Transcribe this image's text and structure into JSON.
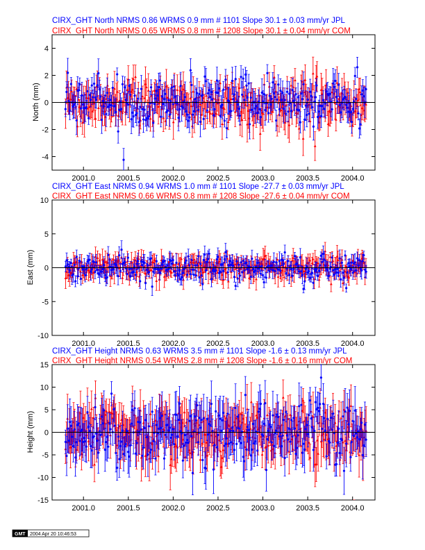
{
  "chart_data": [
    {
      "type": "scatter",
      "title": "",
      "header_lines": [
        "CIRX_GHT North NRMS 0.86 WRMS  0.9 mm # 1101 Slope   30.1 ±  0.03 mm/yr JPL",
        "CIRX_GHT North NRMS 0.65 WRMS  0.8 mm # 1208 Slope   30.1 ±  0.04 mm/yr COM"
      ],
      "xlabel": "",
      "ylabel": "North (mm)",
      "xlim": [
        2000.65,
        2004.25
      ],
      "ylim": [
        -5,
        5
      ],
      "xticks": [
        2001.0,
        2001.5,
        2002.0,
        2002.5,
        2003.0,
        2003.5,
        2004.0
      ],
      "xtick_labels": [
        "2001.0",
        "2001.5",
        "2002.0",
        "2002.5",
        "2003.0",
        "2003.5",
        "2004.0"
      ],
      "yticks": [
        -4,
        -2,
        0,
        2,
        4
      ],
      "ytick_labels": [
        "-4",
        "-2",
        "0",
        "2",
        "4"
      ],
      "x_range": [
        2000.8,
        2004.15
      ],
      "zero_line": 0,
      "series": [
        {
          "name": "JPL",
          "color": "#0000ff",
          "marker": "circle",
          "count": 1101,
          "nrms": 0.86,
          "wrms": 0.9,
          "slope": 30.1,
          "slope_sigma": 0.03,
          "scatter": 0.85,
          "error": 0.75
        },
        {
          "name": "COM",
          "color": "#ff0000",
          "marker": "triangle",
          "count": 1208,
          "nrms": 0.65,
          "wrms": 0.8,
          "slope": 30.1,
          "slope_sigma": 0.04,
          "scatter": 0.8,
          "error": 0.9
        }
      ]
    },
    {
      "type": "scatter",
      "title": "",
      "header_lines": [
        "CIRX_GHT East NRMS 0.94 WRMS  1.0 mm # 1101 Slope  -27.7 ±  0.03 mm/yr JPL",
        "CIRX_GHT East NRMS 0.66 WRMS  0.8 mm # 1208 Slope  -27.6 ±  0.04 mm/yr COM"
      ],
      "xlabel": "",
      "ylabel": "East (mm)",
      "xlim": [
        2000.65,
        2004.25
      ],
      "ylim": [
        -10,
        10
      ],
      "xticks": [
        2001.0,
        2001.5,
        2002.0,
        2002.5,
        2003.0,
        2003.5,
        2004.0
      ],
      "xtick_labels": [
        "2001.0",
        "2001.5",
        "2002.0",
        "2002.5",
        "2003.0",
        "2003.5",
        "2004.0"
      ],
      "yticks": [
        -10,
        -5,
        0,
        5,
        10
      ],
      "ytick_labels": [
        "-10",
        "-5",
        "0",
        "5",
        "10"
      ],
      "x_range": [
        2000.8,
        2004.15
      ],
      "zero_line": 0,
      "series": [
        {
          "name": "JPL",
          "color": "#0000ff",
          "marker": "circle",
          "count": 1101,
          "nrms": 0.94,
          "wrms": 1.0,
          "slope": -27.7,
          "slope_sigma": 0.03,
          "scatter": 1.0,
          "error": 0.9
        },
        {
          "name": "COM",
          "color": "#ff0000",
          "marker": "triangle",
          "count": 1208,
          "nrms": 0.66,
          "wrms": 0.8,
          "slope": -27.6,
          "slope_sigma": 0.04,
          "scatter": 0.8,
          "error": 1.1
        }
      ]
    },
    {
      "type": "scatter",
      "title": "",
      "header_lines": [
        "CIRX_GHT Height NRMS 0.63 WRMS  3.5 mm # 1101 Slope   -1.6 ±  0.13 mm/yr JPL",
        "CIRX_GHT Height NRMS 0.54 WRMS  2.8 mm # 1208 Slope   -1.6 ±  0.16 mm/yr COM"
      ],
      "xlabel": "",
      "ylabel": "Height (mm)",
      "xlim": [
        2000.65,
        2004.25
      ],
      "ylim": [
        -15,
        15
      ],
      "xticks": [
        2001.0,
        2001.5,
        2002.0,
        2002.5,
        2003.0,
        2003.5,
        2004.0
      ],
      "xtick_labels": [
        "2001.0",
        "2001.5",
        "2002.0",
        "2002.5",
        "2003.0",
        "2003.5",
        "2004.0"
      ],
      "yticks": [
        -15,
        -10,
        -5,
        0,
        5,
        10,
        15
      ],
      "ytick_labels": [
        "-15",
        "-10",
        "-5",
        "0",
        "5",
        "10",
        "15"
      ],
      "x_range": [
        2000.8,
        2004.15
      ],
      "zero_line": 0,
      "series": [
        {
          "name": "JPL",
          "color": "#0000ff",
          "marker": "circle",
          "count": 1101,
          "nrms": 0.63,
          "wrms": 3.5,
          "slope": -1.6,
          "slope_sigma": 0.13,
          "scatter": 3.4,
          "error": 3.6
        },
        {
          "name": "COM",
          "color": "#ff0000",
          "marker": "triangle",
          "count": 1208,
          "nrms": 0.54,
          "wrms": 2.8,
          "slope": -1.6,
          "slope_sigma": 0.16,
          "scatter": 2.8,
          "error": 3.8
        }
      ]
    }
  ],
  "stamp": {
    "logo": "GMT",
    "timestamp": "2004 Apr 20 10:46:53"
  }
}
